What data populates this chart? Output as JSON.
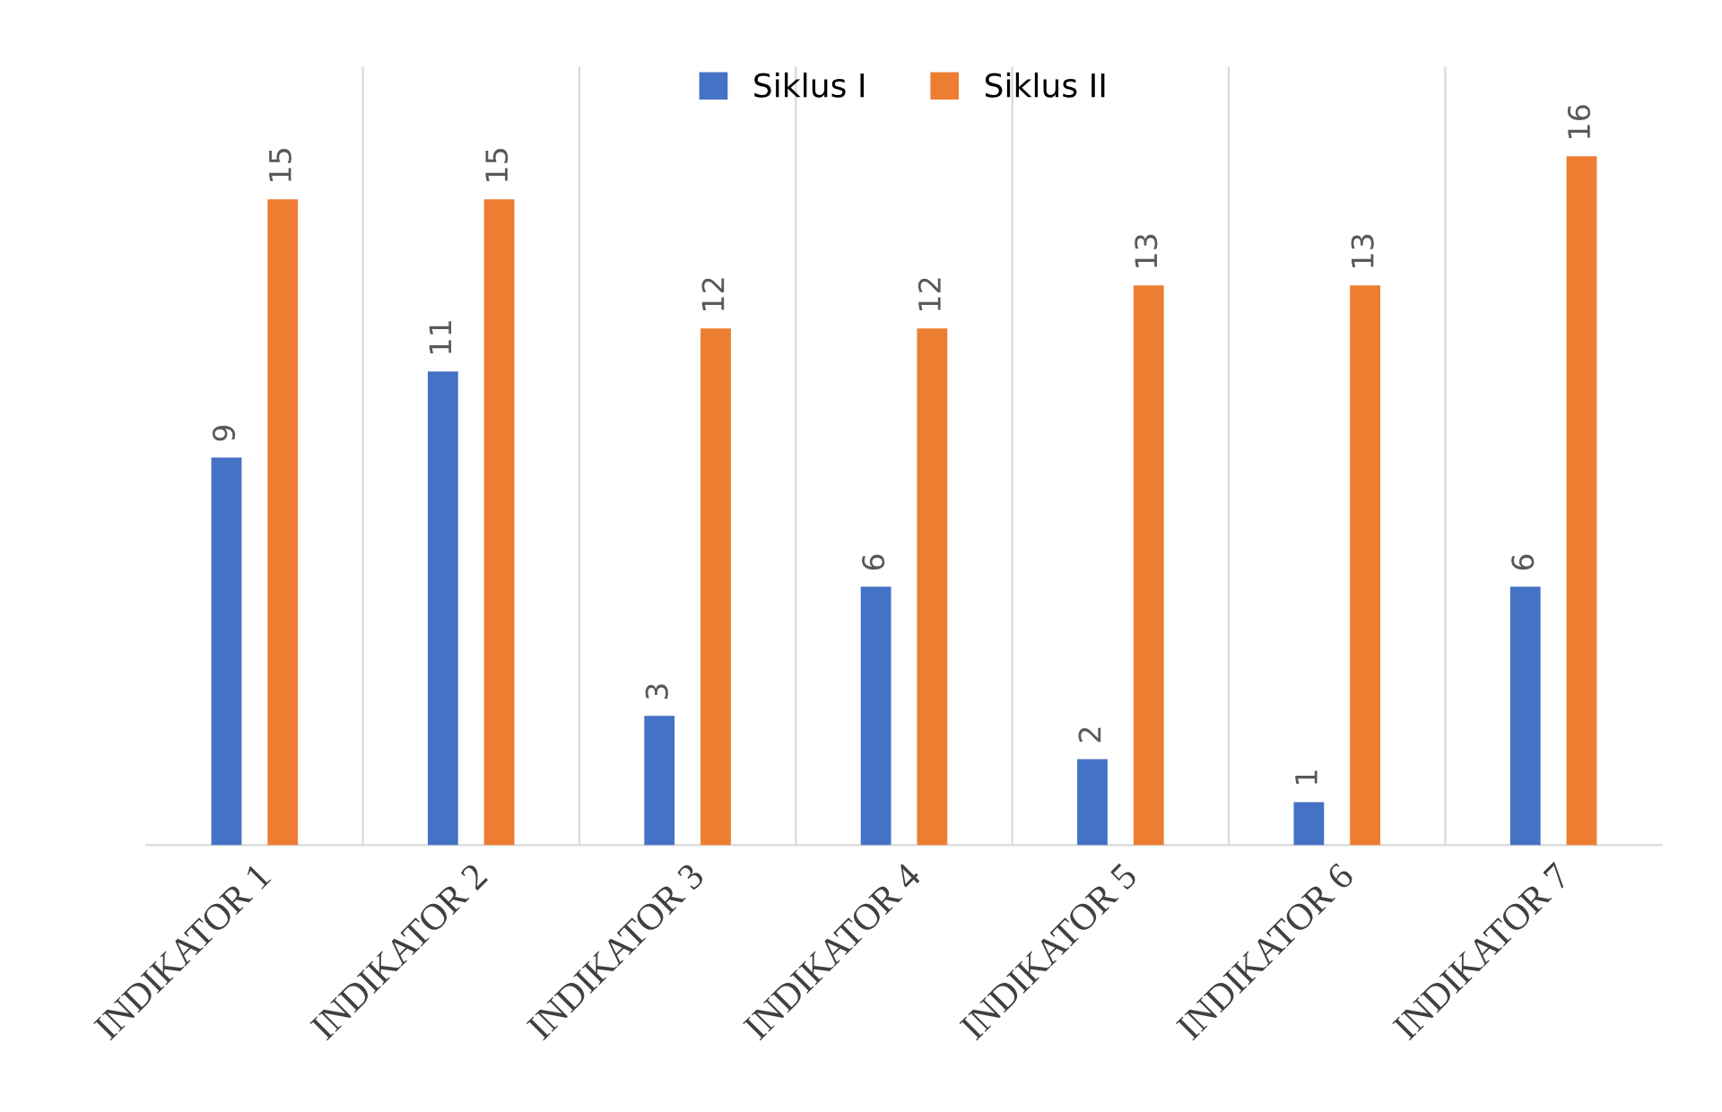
{
  "chart_data": {
    "type": "bar",
    "categories": [
      "INDIKATOR 1",
      "INDIKATOR 2",
      "INDIKATOR 3",
      "INDIKATOR 4",
      "INDIKATOR 5",
      "INDIKATOR 6",
      "INDIKATOR 7"
    ],
    "series": [
      {
        "name": "Siklus I",
        "color": "#4472c4",
        "values": [
          9,
          11,
          3,
          6,
          2,
          1,
          6
        ]
      },
      {
        "name": "Siklus II",
        "color": "#ed7d31",
        "values": [
          15,
          15,
          12,
          12,
          13,
          13,
          16
        ]
      }
    ],
    "data_labels": true,
    "grid": "x",
    "legend": "top",
    "tick_labels": "x"
  }
}
